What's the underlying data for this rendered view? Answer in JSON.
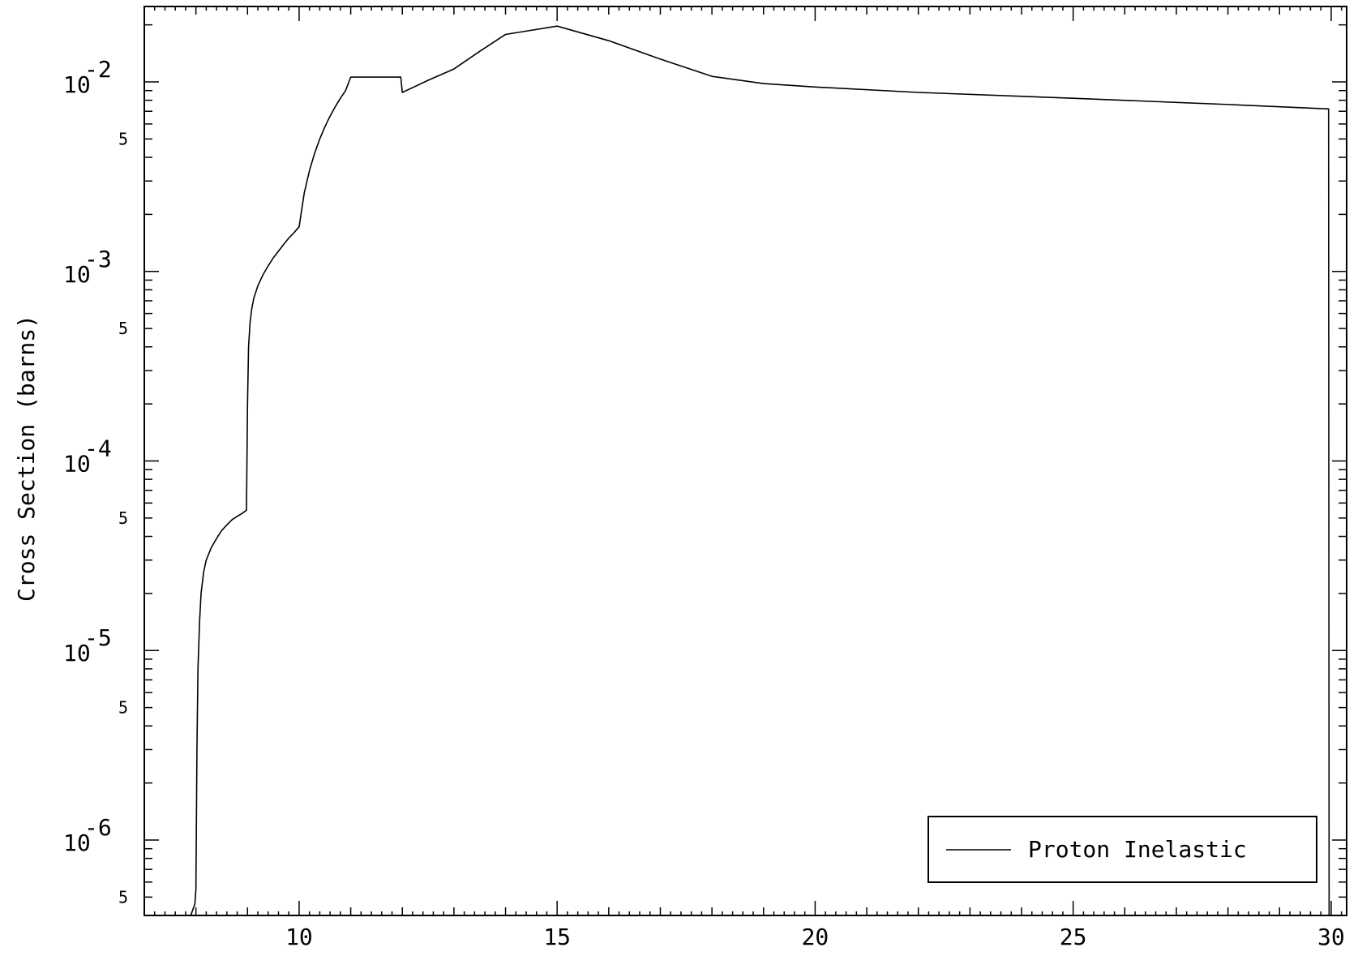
{
  "chart_data": {
    "type": "line",
    "title": "",
    "xlabel": "",
    "ylabel": "Cross Section (barns)",
    "xscale": "linear",
    "yscale": "log",
    "xlim": [
      7,
      30.3
    ],
    "ylim": [
      4e-07,
      0.025
    ],
    "x_ticks": [
      10,
      15,
      20,
      25,
      30
    ],
    "x_tick_labels": [
      "10",
      "15",
      "20",
      "25",
      "30"
    ],
    "y_major_ticks": [
      {
        "value": 1e-06,
        "base": "10",
        "exponent": "-6"
      },
      {
        "value": 1e-05,
        "base": "10",
        "exponent": "-5"
      },
      {
        "value": 0.0001,
        "base": "10",
        "exponent": "-4"
      },
      {
        "value": 0.001,
        "base": "10",
        "exponent": "-3"
      },
      {
        "value": 0.01,
        "base": "10",
        "exponent": "-2"
      }
    ],
    "y_minor_labels": [
      {
        "value": 5e-07,
        "label": "5"
      },
      {
        "value": 5e-06,
        "label": "5"
      },
      {
        "value": 5e-05,
        "label": "5"
      },
      {
        "value": 0.0005,
        "label": "5"
      },
      {
        "value": 0.005,
        "label": "5"
      }
    ],
    "grid": false,
    "legend": {
      "position": "bottom-right",
      "entries": [
        "Proton Inelastic"
      ]
    },
    "series": [
      {
        "name": "Proton Inelastic",
        "color": "#000000",
        "x": [
          7.9,
          7.98,
          8.0,
          8.02,
          8.04,
          8.07,
          8.1,
          8.15,
          8.2,
          8.3,
          8.4,
          8.5,
          8.6,
          8.7,
          8.8,
          8.9,
          8.98,
          9.0,
          9.02,
          9.05,
          9.08,
          9.12,
          9.2,
          9.3,
          9.4,
          9.5,
          9.6,
          9.7,
          9.8,
          9.9,
          10.0,
          10.1,
          10.2,
          10.3,
          10.4,
          10.5,
          10.6,
          10.7,
          10.8,
          10.9,
          11.0,
          11.5,
          11.97,
          12.0,
          12.5,
          13.0,
          13.5,
          14.0,
          15.0,
          16.0,
          17.0,
          18.0,
          19.0,
          20.0,
          22.0,
          25.0,
          28.0,
          29.95,
          29.96
        ],
        "y": [
          4e-07,
          4.6e-07,
          5.5e-07,
          3e-06,
          8e-06,
          1.4e-05,
          2e-05,
          2.6e-05,
          3e-05,
          3.5e-05,
          3.9e-05,
          4.3e-05,
          4.6e-05,
          4.9e-05,
          5.1e-05,
          5.3e-05,
          5.5e-05,
          0.0002,
          0.0004,
          0.00054,
          0.00063,
          0.00072,
          0.00084,
          0.00096,
          0.00107,
          0.00118,
          0.00128,
          0.00139,
          0.0015,
          0.0016,
          0.00172,
          0.0026,
          0.0034,
          0.0042,
          0.005,
          0.0058,
          0.0066,
          0.0074,
          0.0082,
          0.009,
          0.0106,
          0.0106,
          0.0106,
          0.0088,
          0.0102,
          0.0117,
          0.0145,
          0.0178,
          0.0197,
          0.0165,
          0.0132,
          0.0107,
          0.0098,
          0.0094,
          0.0088,
          0.0082,
          0.0076,
          0.0072,
          4e-07
        ]
      }
    ]
  }
}
